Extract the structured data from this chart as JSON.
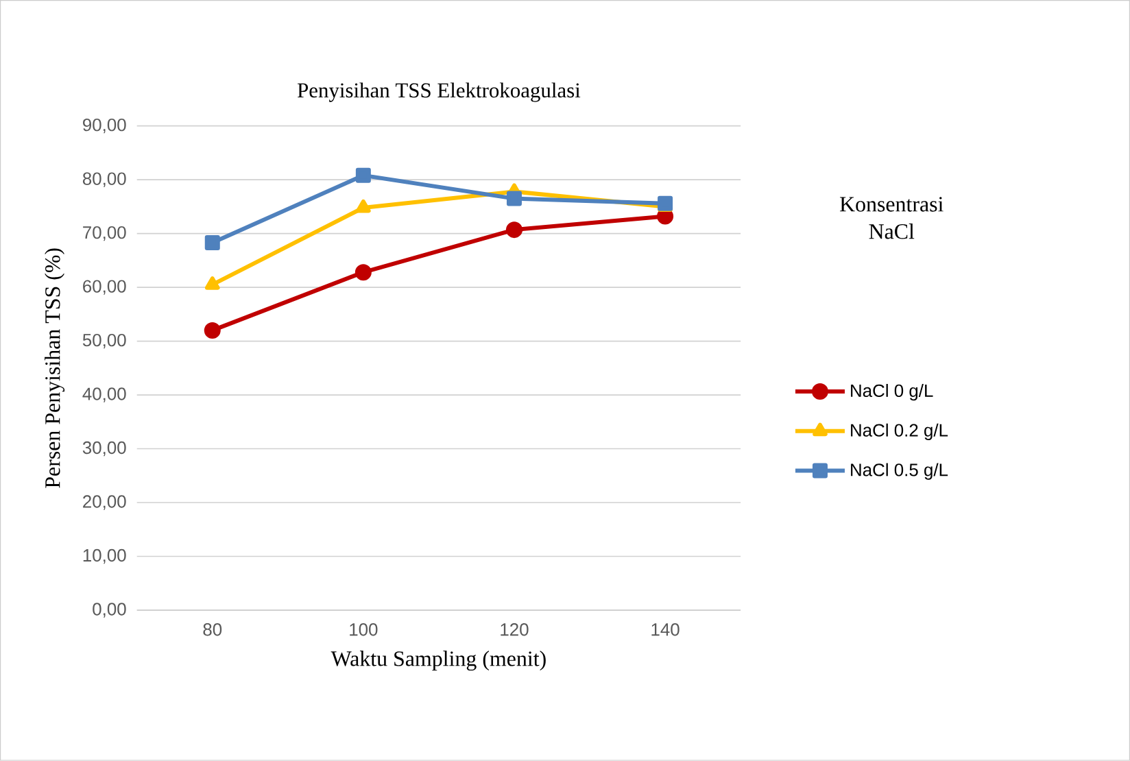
{
  "chart_data": {
    "type": "line",
    "title": "Penyisihan TSS Elektrokoagulasi",
    "xlabel": "Waktu Sampling (menit)",
    "ylabel": "Persen Penyisihan  TSS (%)",
    "legend_title": "Konsentrasi NaCl",
    "categories": [
      "80",
      "100",
      "120",
      "140"
    ],
    "series": [
      {
        "name": "NaCl 0 g/L",
        "color": "#c00000",
        "marker": "circle",
        "values": [
          52.0,
          62.8,
          70.7,
          73.2
        ]
      },
      {
        "name": "NaCl 0.2 g/L",
        "color": "#ffc000",
        "marker": "triangle",
        "values": [
          60.5,
          74.8,
          77.8,
          75.0
        ]
      },
      {
        "name": "NaCl 0.5 g/L",
        "color": "#4f81bd",
        "marker": "square",
        "values": [
          68.3,
          80.8,
          76.5,
          75.6
        ]
      }
    ],
    "ylim": [
      0,
      90
    ],
    "yticks": [
      {
        "value": 0,
        "label": "0,00"
      },
      {
        "value": 10,
        "label": "10,00"
      },
      {
        "value": 20,
        "label": "20,00"
      },
      {
        "value": 30,
        "label": "30,00"
      },
      {
        "value": 40,
        "label": "40,00"
      },
      {
        "value": 50,
        "label": "50,00"
      },
      {
        "value": 60,
        "label": "60,00"
      },
      {
        "value": 70,
        "label": "70,00"
      },
      {
        "value": 80,
        "label": "80,00"
      },
      {
        "value": 90,
        "label": "90,00"
      }
    ],
    "grid": "y",
    "legend": "right",
    "line_style": "solid"
  }
}
